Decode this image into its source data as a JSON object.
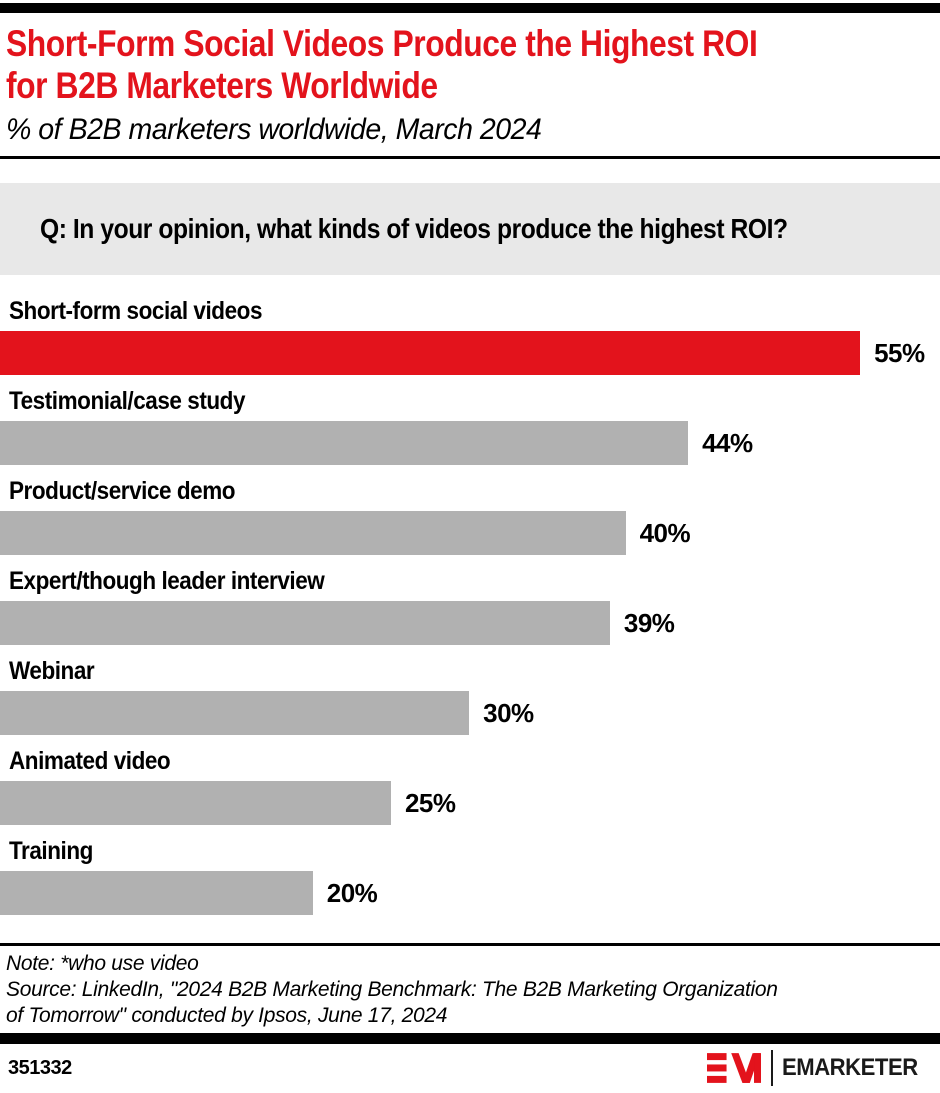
{
  "header": {
    "title_lines": [
      "Short-Form Social Videos Produce the Highest ROI",
      "for B2B Marketers Worldwide"
    ],
    "subtitle": "% of B2B marketers worldwide, March 2024"
  },
  "question": "Q: In your opinion, what kinds of videos produce the highest ROI?",
  "chart_data": {
    "type": "bar",
    "orientation": "horizontal",
    "title": "Short-Form Social Videos Produce the Highest ROI for B2B Marketers Worldwide",
    "subtitle": "% of B2B marketers worldwide, March 2024",
    "categories": [
      "Short-form social videos",
      "Testimonial/case study",
      "Product/service demo",
      "Expert/though leader interview",
      "Webinar",
      "Animated video",
      "Training"
    ],
    "values": [
      55,
      44,
      40,
      39,
      30,
      25,
      20
    ],
    "value_suffix": "%",
    "xlim": [
      0,
      60
    ],
    "grid": false,
    "legend": false,
    "highlight_index": 0,
    "colors": {
      "highlight": "#E3131C",
      "bar": "#B1B1B1",
      "question_bg": "#E8E8E8",
      "text": "#000000"
    }
  },
  "footer": {
    "note_lines": [
      "Note: *who use video",
      "Source: LinkedIn, \"2024 B2B Marketing Benchmark: The B2B Marketing Organization",
      "of Tomorrow\" conducted by Ipsos,  June 17, 2024"
    ],
    "chart_number": "351332",
    "brand": "EMARKETER"
  }
}
